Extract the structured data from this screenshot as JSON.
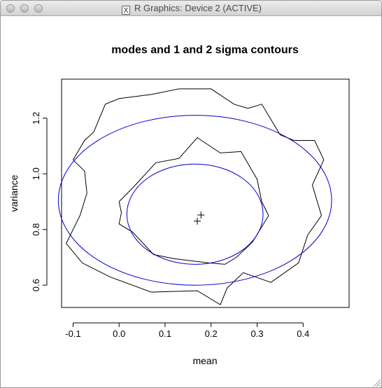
{
  "window": {
    "title": "R Graphics: Device 2 (ACTIVE)",
    "app_badge": "X",
    "buttons": [
      "close-button",
      "minimize-button",
      "zoom-button"
    ]
  },
  "chart_data": {
    "type": "line",
    "title": "modes and 1 and 2 sigma contours",
    "xlabel": "mean",
    "ylabel": "variance",
    "xlim": [
      -0.125,
      0.5
    ],
    "ylim": [
      0.52,
      1.34
    ],
    "xticks": [
      -0.1,
      0.0,
      0.1,
      0.2,
      0.3,
      0.4
    ],
    "xtick_labels": [
      "-0.1",
      "0.0",
      "0.1",
      "0.2",
      "0.3",
      "0.4"
    ],
    "yticks": [
      0.6,
      0.8,
      1.0,
      1.2
    ],
    "ytick_labels": [
      "0.6",
      "0.8",
      "1.0",
      "1.2"
    ],
    "grid": false,
    "colors": {
      "empirical": "#000000",
      "gaussian": "#0000cc"
    },
    "series": [
      {
        "kind": "empirical-contour",
        "points": [
          [
            -0.1,
            1.05
          ],
          [
            -0.075,
            1.12
          ],
          [
            -0.055,
            1.15
          ],
          [
            -0.03,
            1.25
          ],
          [
            0.0,
            1.27
          ],
          [
            0.07,
            1.285
          ],
          [
            0.13,
            1.305
          ],
          [
            0.2,
            1.305
          ],
          [
            0.25,
            1.25
          ],
          [
            0.28,
            1.235
          ],
          [
            0.31,
            1.25
          ],
          [
            0.35,
            1.14
          ],
          [
            0.38,
            1.12
          ],
          [
            0.425,
            1.12
          ],
          [
            0.445,
            1.05
          ],
          [
            0.42,
            0.96
          ],
          [
            0.44,
            0.85
          ],
          [
            0.41,
            0.78
          ],
          [
            0.39,
            0.68
          ],
          [
            0.33,
            0.61
          ],
          [
            0.27,
            0.645
          ],
          [
            0.235,
            0.59
          ],
          [
            0.22,
            0.53
          ],
          [
            0.17,
            0.58
          ],
          [
            0.07,
            0.575
          ],
          [
            -0.02,
            0.63
          ],
          [
            -0.08,
            0.68
          ],
          [
            -0.115,
            0.75
          ],
          [
            -0.085,
            0.85
          ],
          [
            -0.07,
            0.93
          ],
          [
            -0.075,
            1.01
          ],
          [
            -0.1,
            1.05
          ]
        ]
      },
      {
        "kind": "empirical-contour",
        "points": [
          [
            0.0,
            0.9
          ],
          [
            0.03,
            0.95
          ],
          [
            0.08,
            1.04
          ],
          [
            0.13,
            1.055
          ],
          [
            0.17,
            1.13
          ],
          [
            0.22,
            1.075
          ],
          [
            0.265,
            1.08
          ],
          [
            0.3,
            0.98
          ],
          [
            0.31,
            0.9
          ],
          [
            0.325,
            0.85
          ],
          [
            0.29,
            0.755
          ],
          [
            0.255,
            0.7
          ],
          [
            0.23,
            0.675
          ],
          [
            0.195,
            0.68
          ],
          [
            0.12,
            0.695
          ],
          [
            0.075,
            0.71
          ],
          [
            0.03,
            0.79
          ],
          [
            0.0,
            0.82
          ],
          [
            0.005,
            0.86
          ],
          [
            0.0,
            0.9
          ]
        ]
      },
      {
        "kind": "gaussian-contour",
        "center": [
          0.165,
          0.855
        ],
        "rx": 0.148,
        "ry": 0.18
      },
      {
        "kind": "gaussian-contour",
        "center": [
          0.165,
          0.905
        ],
        "rx": 0.297,
        "ry": 0.305
      }
    ],
    "modes": [
      [
        0.17,
        0.83
      ],
      [
        0.178,
        0.852
      ]
    ]
  }
}
